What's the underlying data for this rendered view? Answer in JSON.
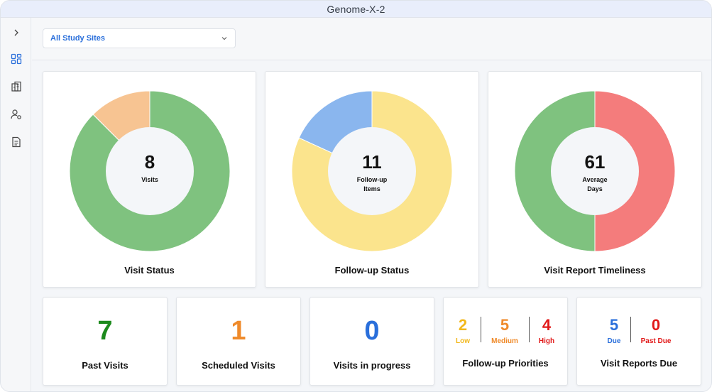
{
  "window": {
    "title": "Genome-X-2"
  },
  "sidebar": {
    "icons": [
      "chevron-right-icon",
      "dashboard-grid-icon",
      "building-icon",
      "user-settings-icon",
      "document-icon"
    ]
  },
  "filter": {
    "selected": "All Study Sites",
    "icon": "chevron-down-icon"
  },
  "cards": {
    "visit_status": {
      "title": "Visit Status",
      "value": "8",
      "label_lines": [
        "Visits"
      ]
    },
    "followup_status": {
      "title": "Follow-up Status",
      "value": "11",
      "label_lines": [
        "Follow-up",
        "Items"
      ]
    },
    "timeliness": {
      "title": "Visit Report Timeliness",
      "value": "61",
      "label_lines": [
        "Average",
        "Days"
      ]
    },
    "past_visits": {
      "title": "Past Visits",
      "value": "7",
      "color": "#1c8a1c"
    },
    "scheduled_visits": {
      "title": "Scheduled Visits",
      "value": "1",
      "color": "#ef8a2a"
    },
    "in_progress": {
      "title": "Visits in progress",
      "value": "0",
      "color": "#2a6fdb"
    },
    "priorities": {
      "title": "Follow-up Priorities",
      "low": {
        "value": "2",
        "label": "Low",
        "color": "#f2b81c"
      },
      "medium": {
        "value": "5",
        "label": "Medium",
        "color": "#ef8a2a"
      },
      "high": {
        "value": "4",
        "label": "High",
        "color": "#e11919"
      }
    },
    "reports_due": {
      "title": "Visit Reports Due",
      "due": {
        "value": "5",
        "label": "Due",
        "color": "#2a6fdb"
      },
      "past_due": {
        "value": "0",
        "label": "Past Due",
        "color": "#e11919"
      }
    }
  },
  "chart_data": [
    {
      "type": "pie",
      "title": "Visit Status",
      "slices": [
        {
          "value": 7,
          "color": "#7fc27f"
        },
        {
          "value": 1,
          "color": "#f7c492"
        }
      ]
    },
    {
      "type": "pie",
      "title": "Follow-up Status",
      "slices": [
        {
          "value": 9,
          "color": "#fbe48d"
        },
        {
          "value": 2,
          "color": "#8ab6ee"
        }
      ]
    },
    {
      "type": "pie",
      "title": "Visit Report Timeliness",
      "slices": [
        {
          "value": 50,
          "color": "#f47c7c"
        },
        {
          "value": 50,
          "color": "#7fc27f"
        }
      ]
    }
  ]
}
